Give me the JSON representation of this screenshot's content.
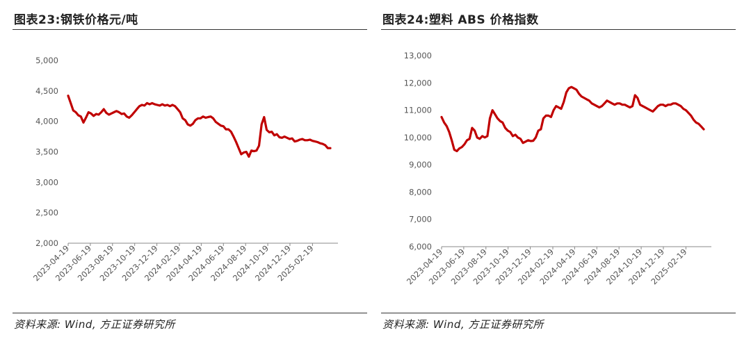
{
  "charts": [
    {
      "figure_title": "图表23:钢铁价格元/吨",
      "source": "资料来源: Wind, 方正证券研究所",
      "color": "#c00000",
      "chart_data": {
        "type": "line",
        "title": "",
        "xlabel": "",
        "ylabel": "",
        "ylim": [
          2000,
          5000
        ],
        "y_ticks": [
          2000,
          2500,
          3000,
          3500,
          4000,
          4500,
          5000
        ],
        "y_tick_labels": [
          "2,000",
          "2,500",
          "3,000",
          "3,500",
          "4,000",
          "4,500",
          "5,000"
        ],
        "x_ticks": [
          "2023-04-19",
          "2023-06-19",
          "2023-08-19",
          "2023-10-19",
          "2023-12-19",
          "2024-02-19",
          "2024-04-19",
          "2024-06-19",
          "2024-08-19",
          "2024-10-19",
          "2024-12-19",
          "2025-02-19"
        ],
        "x_range": [
          "2023-04-19",
          "2025-04-30"
        ],
        "grid": false,
        "series": [
          {
            "points": [
              [
                "2023-04-19",
                4420
              ],
              [
                "2023-04-26",
                4300
              ],
              [
                "2023-05-03",
                4180
              ],
              [
                "2023-05-10",
                4150
              ],
              [
                "2023-05-17",
                4100
              ],
              [
                "2023-05-24",
                4080
              ],
              [
                "2023-05-31",
                3980
              ],
              [
                "2023-06-07",
                4060
              ],
              [
                "2023-06-14",
                4150
              ],
              [
                "2023-06-21",
                4130
              ],
              [
                "2023-06-28",
                4090
              ],
              [
                "2023-07-05",
                4120
              ],
              [
                "2023-07-12",
                4110
              ],
              [
                "2023-07-19",
                4150
              ],
              [
                "2023-07-26",
                4200
              ],
              [
                "2023-08-02",
                4140
              ],
              [
                "2023-08-09",
                4110
              ],
              [
                "2023-08-16",
                4130
              ],
              [
                "2023-08-23",
                4150
              ],
              [
                "2023-08-30",
                4170
              ],
              [
                "2023-09-06",
                4150
              ],
              [
                "2023-09-13",
                4120
              ],
              [
                "2023-09-20",
                4130
              ],
              [
                "2023-09-27",
                4080
              ],
              [
                "2023-10-04",
                4060
              ],
              [
                "2023-10-11",
                4100
              ],
              [
                "2023-10-18",
                4150
              ],
              [
                "2023-10-25",
                4200
              ],
              [
                "2023-11-01",
                4250
              ],
              [
                "2023-11-08",
                4270
              ],
              [
                "2023-11-15",
                4260
              ],
              [
                "2023-11-22",
                4300
              ],
              [
                "2023-11-29",
                4280
              ],
              [
                "2023-12-06",
                4300
              ],
              [
                "2023-12-13",
                4280
              ],
              [
                "2023-12-20",
                4270
              ],
              [
                "2023-12-27",
                4260
              ],
              [
                "2024-01-03",
                4280
              ],
              [
                "2024-01-10",
                4260
              ],
              [
                "2024-01-17",
                4270
              ],
              [
                "2024-01-24",
                4250
              ],
              [
                "2024-01-31",
                4270
              ],
              [
                "2024-02-07",
                4250
              ],
              [
                "2024-02-14",
                4200
              ],
              [
                "2024-02-21",
                4150
              ],
              [
                "2024-02-28",
                4050
              ],
              [
                "2024-03-06",
                4020
              ],
              [
                "2024-03-13",
                3950
              ],
              [
                "2024-03-20",
                3930
              ],
              [
                "2024-03-27",
                3960
              ],
              [
                "2024-04-03",
                4020
              ],
              [
                "2024-04-10",
                4050
              ],
              [
                "2024-04-17",
                4050
              ],
              [
                "2024-04-24",
                4080
              ],
              [
                "2024-05-01",
                4060
              ],
              [
                "2024-05-08",
                4070
              ],
              [
                "2024-05-15",
                4080
              ],
              [
                "2024-05-22",
                4050
              ],
              [
                "2024-05-29",
                3990
              ],
              [
                "2024-06-05",
                3960
              ],
              [
                "2024-06-12",
                3930
              ],
              [
                "2024-06-19",
                3920
              ],
              [
                "2024-06-26",
                3870
              ],
              [
                "2024-07-03",
                3870
              ],
              [
                "2024-07-10",
                3830
              ],
              [
                "2024-07-17",
                3750
              ],
              [
                "2024-07-24",
                3660
              ],
              [
                "2024-07-31",
                3560
              ],
              [
                "2024-08-07",
                3460
              ],
              [
                "2024-08-14",
                3490
              ],
              [
                "2024-08-21",
                3500
              ],
              [
                "2024-08-28",
                3420
              ],
              [
                "2024-09-04",
                3520
              ],
              [
                "2024-09-11",
                3510
              ],
              [
                "2024-09-18",
                3520
              ],
              [
                "2024-09-25",
                3600
              ],
              [
                "2024-10-02",
                3950
              ],
              [
                "2024-10-09",
                4070
              ],
              [
                "2024-10-16",
                3860
              ],
              [
                "2024-10-23",
                3820
              ],
              [
                "2024-10-30",
                3830
              ],
              [
                "2024-11-06",
                3770
              ],
              [
                "2024-11-13",
                3790
              ],
              [
                "2024-11-20",
                3740
              ],
              [
                "2024-11-27",
                3730
              ],
              [
                "2024-12-04",
                3750
              ],
              [
                "2024-12-11",
                3730
              ],
              [
                "2024-12-18",
                3710
              ],
              [
                "2024-12-25",
                3720
              ],
              [
                "2025-01-01",
                3670
              ],
              [
                "2025-01-08",
                3680
              ],
              [
                "2025-01-15",
                3700
              ],
              [
                "2025-01-22",
                3710
              ],
              [
                "2025-01-29",
                3690
              ],
              [
                "2025-02-05",
                3690
              ],
              [
                "2025-02-12",
                3700
              ],
              [
                "2025-02-19",
                3680
              ],
              [
                "2025-02-26",
                3670
              ],
              [
                "2025-03-05",
                3660
              ],
              [
                "2025-03-12",
                3640
              ],
              [
                "2025-03-19",
                3630
              ],
              [
                "2025-03-26",
                3610
              ],
              [
                "2025-04-02",
                3560
              ],
              [
                "2025-04-09",
                3560
              ]
            ]
          }
        ]
      }
    },
    {
      "figure_title": "图表24:塑料 ABS 价格指数",
      "source": "资料来源: Wind, 方正证券研究所",
      "color": "#c00000",
      "chart_data": {
        "type": "line",
        "title": "",
        "xlabel": "",
        "ylabel": "",
        "ylim": [
          6000,
          13000
        ],
        "y_ticks": [
          6000,
          7000,
          8000,
          9000,
          10000,
          11000,
          12000,
          13000
        ],
        "y_tick_labels": [
          "6,000",
          "7,000",
          "8,000",
          "9,000",
          "10,000",
          "11,000",
          "12,000",
          "13,000"
        ],
        "x_ticks": [
          "2023-04-19",
          "2023-06-19",
          "2023-08-19",
          "2023-10-19",
          "2023-12-19",
          "2024-02-19",
          "2024-04-19",
          "2024-06-19",
          "2024-08-19",
          "2024-10-19",
          "2024-12-19",
          "2025-02-19"
        ],
        "x_range": [
          "2023-04-19",
          "2025-04-30"
        ],
        "grid": false,
        "series": [
          {
            "points": [
              [
                "2023-04-19",
                10750
              ],
              [
                "2023-04-26",
                10550
              ],
              [
                "2023-05-03",
                10420
              ],
              [
                "2023-05-10",
                10200
              ],
              [
                "2023-05-17",
                9900
              ],
              [
                "2023-05-24",
                9550
              ],
              [
                "2023-05-31",
                9500
              ],
              [
                "2023-06-07",
                9600
              ],
              [
                "2023-06-14",
                9650
              ],
              [
                "2023-06-21",
                9750
              ],
              [
                "2023-06-28",
                9900
              ],
              [
                "2023-07-05",
                9950
              ],
              [
                "2023-07-12",
                10350
              ],
              [
                "2023-07-19",
                10250
              ],
              [
                "2023-07-26",
                10000
              ],
              [
                "2023-08-02",
                9950
              ],
              [
                "2023-08-09",
                10050
              ],
              [
                "2023-08-16",
                10000
              ],
              [
                "2023-08-23",
                10050
              ],
              [
                "2023-08-30",
                10700
              ],
              [
                "2023-09-06",
                11000
              ],
              [
                "2023-09-13",
                10850
              ],
              [
                "2023-09-20",
                10700
              ],
              [
                "2023-09-27",
                10600
              ],
              [
                "2023-10-04",
                10550
              ],
              [
                "2023-10-11",
                10350
              ],
              [
                "2023-10-18",
                10250
              ],
              [
                "2023-10-25",
                10200
              ],
              [
                "2023-11-01",
                10050
              ],
              [
                "2023-11-08",
                10100
              ],
              [
                "2023-11-15",
                10000
              ],
              [
                "2023-11-22",
                9950
              ],
              [
                "2023-11-29",
                9800
              ],
              [
                "2023-12-06",
                9850
              ],
              [
                "2023-12-13",
                9900
              ],
              [
                "2023-12-20",
                9870
              ],
              [
                "2023-12-27",
                9880
              ],
              [
                "2024-01-03",
                10000
              ],
              [
                "2024-01-10",
                10250
              ],
              [
                "2024-01-17",
                10300
              ],
              [
                "2024-01-24",
                10700
              ],
              [
                "2024-01-31",
                10800
              ],
              [
                "2024-02-07",
                10800
              ],
              [
                "2024-02-14",
                10750
              ],
              [
                "2024-02-21",
                11000
              ],
              [
                "2024-02-28",
                11150
              ],
              [
                "2024-03-06",
                11100
              ],
              [
                "2024-03-13",
                11050
              ],
              [
                "2024-03-20",
                11300
              ],
              [
                "2024-03-27",
                11650
              ],
              [
                "2024-04-03",
                11800
              ],
              [
                "2024-04-10",
                11850
              ],
              [
                "2024-04-17",
                11800
              ],
              [
                "2024-04-24",
                11750
              ],
              [
                "2024-05-01",
                11600
              ],
              [
                "2024-05-08",
                11500
              ],
              [
                "2024-05-15",
                11450
              ],
              [
                "2024-05-22",
                11400
              ],
              [
                "2024-05-29",
                11350
              ],
              [
                "2024-06-05",
                11250
              ],
              [
                "2024-06-12",
                11200
              ],
              [
                "2024-06-19",
                11150
              ],
              [
                "2024-06-26",
                11100
              ],
              [
                "2024-07-03",
                11150
              ],
              [
                "2024-07-10",
                11250
              ],
              [
                "2024-07-17",
                11350
              ],
              [
                "2024-07-24",
                11300
              ],
              [
                "2024-07-31",
                11250
              ],
              [
                "2024-08-07",
                11200
              ],
              [
                "2024-08-14",
                11250
              ],
              [
                "2024-08-21",
                11250
              ],
              [
                "2024-08-28",
                11200
              ],
              [
                "2024-09-04",
                11200
              ],
              [
                "2024-09-11",
                11150
              ],
              [
                "2024-09-18",
                11100
              ],
              [
                "2024-09-25",
                11150
              ],
              [
                "2024-10-02",
                11550
              ],
              [
                "2024-10-09",
                11450
              ],
              [
                "2024-10-16",
                11200
              ],
              [
                "2024-10-23",
                11150
              ],
              [
                "2024-10-30",
                11100
              ],
              [
                "2024-11-06",
                11050
              ],
              [
                "2024-11-13",
                11000
              ],
              [
                "2024-11-20",
                10950
              ],
              [
                "2024-11-27",
                11050
              ],
              [
                "2024-12-04",
                11150
              ],
              [
                "2024-12-11",
                11200
              ],
              [
                "2024-12-18",
                11200
              ],
              [
                "2024-12-25",
                11150
              ],
              [
                "2025-01-01",
                11200
              ],
              [
                "2025-01-08",
                11200
              ],
              [
                "2025-01-15",
                11250
              ],
              [
                "2025-01-22",
                11250
              ],
              [
                "2025-01-29",
                11200
              ],
              [
                "2025-02-05",
                11150
              ],
              [
                "2025-02-12",
                11050
              ],
              [
                "2025-02-19",
                11000
              ],
              [
                "2025-02-26",
                10900
              ],
              [
                "2025-03-05",
                10800
              ],
              [
                "2025-03-12",
                10650
              ],
              [
                "2025-03-19",
                10550
              ],
              [
                "2025-03-26",
                10500
              ],
              [
                "2025-04-02",
                10400
              ],
              [
                "2025-04-09",
                10300
              ]
            ]
          }
        ]
      }
    }
  ]
}
